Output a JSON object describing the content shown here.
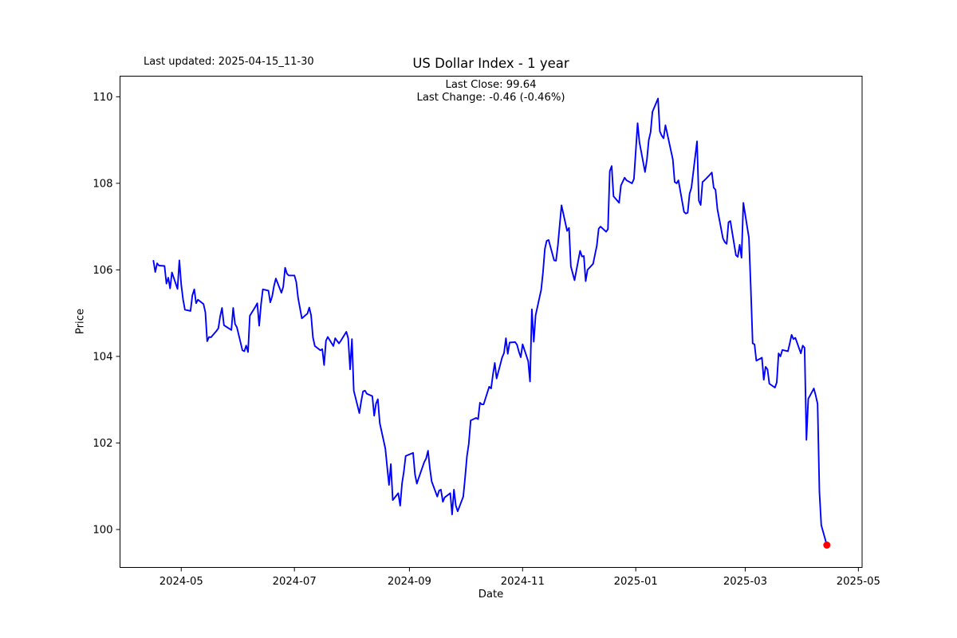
{
  "header": {
    "last_updated": "Last updated: 2025-04-15_11-30"
  },
  "chart_data": {
    "type": "line",
    "title": "US Dollar Index - 1 year",
    "annotation_line1": "Last Close: 99.64",
    "annotation_line2": "Last Change: -0.46 (-0.46%)",
    "xlabel": "Date",
    "ylabel": "Price",
    "last_close": 99.64,
    "last_change": -0.46,
    "last_change_pct": "-0.46%",
    "line_color": "#0000ff",
    "marker_color": "#ff0000",
    "axis_color": "#000000",
    "grid": false,
    "legend_position": "none",
    "xlim": [
      "2024-03-29",
      "2025-05-03"
    ],
    "ylim": [
      99.124,
      110.476
    ],
    "x_ticks": [
      {
        "pos": "2024-05-01",
        "label": "2024-05"
      },
      {
        "pos": "2024-07-01",
        "label": "2024-07"
      },
      {
        "pos": "2024-09-01",
        "label": "2024-09"
      },
      {
        "pos": "2024-11-01",
        "label": "2024-11"
      },
      {
        "pos": "2025-01-01",
        "label": "2025-01"
      },
      {
        "pos": "2025-03-01",
        "label": "2025-03"
      },
      {
        "pos": "2025-05-01",
        "label": "2025-05"
      }
    ],
    "y_ticks": [
      {
        "pos": 100,
        "label": "100"
      },
      {
        "pos": 102,
        "label": "102"
      },
      {
        "pos": 104,
        "label": "104"
      },
      {
        "pos": 106,
        "label": "106"
      },
      {
        "pos": 108,
        "label": "108"
      },
      {
        "pos": 110,
        "label": "110"
      }
    ],
    "series": [
      {
        "name": "US Dollar Index",
        "points": [
          [
            "2024-04-16",
            106.21
          ],
          [
            "2024-04-17",
            105.95
          ],
          [
            "2024-04-18",
            106.15
          ],
          [
            "2024-04-19",
            106.1
          ],
          [
            "2024-04-22",
            106.09
          ],
          [
            "2024-04-23",
            105.68
          ],
          [
            "2024-04-24",
            105.82
          ],
          [
            "2024-04-25",
            105.57
          ],
          [
            "2024-04-26",
            105.94
          ],
          [
            "2024-04-29",
            105.56
          ],
          [
            "2024-04-30",
            106.22
          ],
          [
            "2024-05-01",
            105.65
          ],
          [
            "2024-05-02",
            105.31
          ],
          [
            "2024-05-03",
            105.08
          ],
          [
            "2024-05-06",
            105.05
          ],
          [
            "2024-05-07",
            105.41
          ],
          [
            "2024-05-08",
            105.55
          ],
          [
            "2024-05-09",
            105.23
          ],
          [
            "2024-05-10",
            105.31
          ],
          [
            "2024-05-13",
            105.21
          ],
          [
            "2024-05-14",
            105.02
          ],
          [
            "2024-05-15",
            104.35
          ],
          [
            "2024-05-16",
            104.45
          ],
          [
            "2024-05-17",
            104.44
          ],
          [
            "2024-05-20",
            104.59
          ],
          [
            "2024-05-21",
            104.65
          ],
          [
            "2024-05-22",
            104.93
          ],
          [
            "2024-05-23",
            105.12
          ],
          [
            "2024-05-24",
            104.72
          ],
          [
            "2024-05-28",
            104.61
          ],
          [
            "2024-05-29",
            105.12
          ],
          [
            "2024-05-30",
            104.75
          ],
          [
            "2024-05-31",
            104.67
          ],
          [
            "2024-06-03",
            104.14
          ],
          [
            "2024-06-04",
            104.12
          ],
          [
            "2024-06-05",
            104.25
          ],
          [
            "2024-06-06",
            104.1
          ],
          [
            "2024-06-07",
            104.94
          ],
          [
            "2024-06-10",
            105.15
          ],
          [
            "2024-06-11",
            105.23
          ],
          [
            "2024-06-12",
            104.71
          ],
          [
            "2024-06-13",
            105.2
          ],
          [
            "2024-06-14",
            105.55
          ],
          [
            "2024-06-17",
            105.52
          ],
          [
            "2024-06-18",
            105.25
          ],
          [
            "2024-06-19",
            105.39
          ],
          [
            "2024-06-20",
            105.63
          ],
          [
            "2024-06-21",
            105.8
          ],
          [
            "2024-06-24",
            105.47
          ],
          [
            "2024-06-25",
            105.61
          ],
          [
            "2024-06-26",
            106.05
          ],
          [
            "2024-06-27",
            105.91
          ],
          [
            "2024-06-28",
            105.87
          ],
          [
            "2024-07-01",
            105.87
          ],
          [
            "2024-07-02",
            105.72
          ],
          [
            "2024-07-03",
            105.35
          ],
          [
            "2024-07-05",
            104.88
          ],
          [
            "2024-07-08",
            104.99
          ],
          [
            "2024-07-09",
            105.13
          ],
          [
            "2024-07-10",
            104.95
          ],
          [
            "2024-07-11",
            104.44
          ],
          [
            "2024-07-12",
            104.24
          ],
          [
            "2024-07-15",
            104.14
          ],
          [
            "2024-07-16",
            104.17
          ],
          [
            "2024-07-17",
            103.8
          ],
          [
            "2024-07-18",
            104.36
          ],
          [
            "2024-07-19",
            104.45
          ],
          [
            "2024-07-22",
            104.24
          ],
          [
            "2024-07-23",
            104.42
          ],
          [
            "2024-07-24",
            104.36
          ],
          [
            "2024-07-25",
            104.3
          ],
          [
            "2024-07-26",
            104.36
          ],
          [
            "2024-07-29",
            104.57
          ],
          [
            "2024-07-30",
            104.42
          ],
          [
            "2024-07-31",
            103.7
          ],
          [
            "2024-08-01",
            104.4
          ],
          [
            "2024-08-02",
            103.21
          ],
          [
            "2024-08-05",
            102.69
          ],
          [
            "2024-08-06",
            102.96
          ],
          [
            "2024-08-07",
            103.19
          ],
          [
            "2024-08-08",
            103.21
          ],
          [
            "2024-08-09",
            103.14
          ],
          [
            "2024-08-12",
            103.08
          ],
          [
            "2024-08-13",
            102.63
          ],
          [
            "2024-08-14",
            102.91
          ],
          [
            "2024-08-15",
            103.01
          ],
          [
            "2024-08-16",
            102.46
          ],
          [
            "2024-08-19",
            101.87
          ],
          [
            "2024-08-20",
            101.44
          ],
          [
            "2024-08-21",
            101.03
          ],
          [
            "2024-08-22",
            101.51
          ],
          [
            "2024-08-23",
            100.68
          ],
          [
            "2024-08-26",
            100.84
          ],
          [
            "2024-08-27",
            100.55
          ],
          [
            "2024-08-28",
            101.06
          ],
          [
            "2024-08-29",
            101.34
          ],
          [
            "2024-08-30",
            101.7
          ],
          [
            "2024-09-03",
            101.77
          ],
          [
            "2024-09-04",
            101.27
          ],
          [
            "2024-09-05",
            101.06
          ],
          [
            "2024-09-06",
            101.19
          ],
          [
            "2024-09-09",
            101.56
          ],
          [
            "2024-09-10",
            101.64
          ],
          [
            "2024-09-11",
            101.82
          ],
          [
            "2024-09-12",
            101.42
          ],
          [
            "2024-09-13",
            101.11
          ],
          [
            "2024-09-16",
            100.76
          ],
          [
            "2024-09-17",
            100.9
          ],
          [
            "2024-09-18",
            100.92
          ],
          [
            "2024-09-19",
            100.64
          ],
          [
            "2024-09-20",
            100.74
          ],
          [
            "2024-09-23",
            100.84
          ],
          [
            "2024-09-24",
            100.35
          ],
          [
            "2024-09-25",
            100.92
          ],
          [
            "2024-09-26",
            100.55
          ],
          [
            "2024-09-27",
            100.42
          ],
          [
            "2024-09-30",
            100.76
          ],
          [
            "2024-10-01",
            101.2
          ],
          [
            "2024-10-02",
            101.69
          ],
          [
            "2024-10-03",
            101.98
          ],
          [
            "2024-10-04",
            102.52
          ],
          [
            "2024-10-07",
            102.58
          ],
          [
            "2024-10-08",
            102.55
          ],
          [
            "2024-10-09",
            102.93
          ],
          [
            "2024-10-10",
            102.89
          ],
          [
            "2024-10-11",
            102.89
          ],
          [
            "2024-10-14",
            103.3
          ],
          [
            "2024-10-15",
            103.26
          ],
          [
            "2024-10-16",
            103.58
          ],
          [
            "2024-10-17",
            103.85
          ],
          [
            "2024-10-18",
            103.49
          ],
          [
            "2024-10-21",
            103.98
          ],
          [
            "2024-10-22",
            104.08
          ],
          [
            "2024-10-23",
            104.42
          ],
          [
            "2024-10-24",
            104.06
          ],
          [
            "2024-10-25",
            104.32
          ],
          [
            "2024-10-28",
            104.33
          ],
          [
            "2024-10-29",
            104.27
          ],
          [
            "2024-10-30",
            104.11
          ],
          [
            "2024-10-31",
            103.98
          ],
          [
            "2024-11-01",
            104.28
          ],
          [
            "2024-11-04",
            103.89
          ],
          [
            "2024-11-05",
            103.42
          ],
          [
            "2024-11-06",
            105.09
          ],
          [
            "2024-11-07",
            104.34
          ],
          [
            "2024-11-08",
            104.95
          ],
          [
            "2024-11-11",
            105.54
          ],
          [
            "2024-11-12",
            105.95
          ],
          [
            "2024-11-13",
            106.48
          ],
          [
            "2024-11-14",
            106.67
          ],
          [
            "2024-11-15",
            106.69
          ],
          [
            "2024-11-18",
            106.22
          ],
          [
            "2024-11-19",
            106.21
          ],
          [
            "2024-11-20",
            106.56
          ],
          [
            "2024-11-21",
            107.03
          ],
          [
            "2024-11-22",
            107.49
          ],
          [
            "2024-11-25",
            106.9
          ],
          [
            "2024-11-26",
            106.97
          ],
          [
            "2024-11-27",
            106.08
          ],
          [
            "2024-11-29",
            105.76
          ],
          [
            "2024-12-02",
            106.44
          ],
          [
            "2024-12-03",
            106.31
          ],
          [
            "2024-12-04",
            106.32
          ],
          [
            "2024-12-05",
            105.74
          ],
          [
            "2024-12-06",
            106.0
          ],
          [
            "2024-12-09",
            106.14
          ],
          [
            "2024-12-10",
            106.35
          ],
          [
            "2024-12-11",
            106.55
          ],
          [
            "2024-12-12",
            106.95
          ],
          [
            "2024-12-13",
            107.0
          ],
          [
            "2024-12-16",
            106.88
          ],
          [
            "2024-12-17",
            106.94
          ],
          [
            "2024-12-18",
            108.28
          ],
          [
            "2024-12-19",
            108.4
          ],
          [
            "2024-12-20",
            107.7
          ],
          [
            "2024-12-23",
            107.55
          ],
          [
            "2024-12-24",
            107.95
          ],
          [
            "2024-12-26",
            108.13
          ],
          [
            "2024-12-27",
            108.07
          ],
          [
            "2024-12-30",
            108.0
          ],
          [
            "2024-12-31",
            108.1
          ],
          [
            "2025-01-02",
            109.39
          ],
          [
            "2025-01-03",
            108.95
          ],
          [
            "2025-01-06",
            108.26
          ],
          [
            "2025-01-07",
            108.55
          ],
          [
            "2025-01-08",
            109.0
          ],
          [
            "2025-01-09",
            109.18
          ],
          [
            "2025-01-10",
            109.65
          ],
          [
            "2025-01-13",
            109.96
          ],
          [
            "2025-01-14",
            109.2
          ],
          [
            "2025-01-15",
            109.1
          ],
          [
            "2025-01-16",
            109.04
          ],
          [
            "2025-01-17",
            109.34
          ],
          [
            "2025-01-21",
            108.55
          ],
          [
            "2025-01-22",
            108.03
          ],
          [
            "2025-01-23",
            108.0
          ],
          [
            "2025-01-24",
            108.07
          ],
          [
            "2025-01-27",
            107.34
          ],
          [
            "2025-01-28",
            107.3
          ],
          [
            "2025-01-29",
            107.32
          ],
          [
            "2025-01-30",
            107.76
          ],
          [
            "2025-01-31",
            107.9
          ],
          [
            "2025-02-03",
            108.97
          ],
          [
            "2025-02-04",
            107.6
          ],
          [
            "2025-02-05",
            107.5
          ],
          [
            "2025-02-06",
            108.03
          ],
          [
            "2025-02-07",
            108.07
          ],
          [
            "2025-02-10",
            108.2
          ],
          [
            "2025-02-11",
            108.25
          ],
          [
            "2025-02-12",
            107.9
          ],
          [
            "2025-02-13",
            107.85
          ],
          [
            "2025-02-14",
            107.4
          ],
          [
            "2025-02-17",
            106.73
          ],
          [
            "2025-02-18",
            106.64
          ],
          [
            "2025-02-19",
            106.6
          ],
          [
            "2025-02-20",
            107.1
          ],
          [
            "2025-02-21",
            107.13
          ],
          [
            "2025-02-24",
            106.34
          ],
          [
            "2025-02-25",
            106.3
          ],
          [
            "2025-02-26",
            106.58
          ],
          [
            "2025-02-27",
            106.28
          ],
          [
            "2025-02-28",
            107.55
          ],
          [
            "2025-03-03",
            106.74
          ],
          [
            "2025-03-04",
            105.6
          ],
          [
            "2025-03-05",
            104.3
          ],
          [
            "2025-03-06",
            104.28
          ],
          [
            "2025-03-07",
            103.9
          ],
          [
            "2025-03-10",
            103.97
          ],
          [
            "2025-03-11",
            103.46
          ],
          [
            "2025-03-12",
            103.76
          ],
          [
            "2025-03-13",
            103.7
          ],
          [
            "2025-03-14",
            103.37
          ],
          [
            "2025-03-17",
            103.28
          ],
          [
            "2025-03-18",
            103.4
          ],
          [
            "2025-03-19",
            104.07
          ],
          [
            "2025-03-20",
            104.0
          ],
          [
            "2025-03-21",
            104.15
          ],
          [
            "2025-03-24",
            104.12
          ],
          [
            "2025-03-25",
            104.3
          ],
          [
            "2025-03-26",
            104.5
          ],
          [
            "2025-03-27",
            104.4
          ],
          [
            "2025-03-28",
            104.43
          ],
          [
            "2025-03-31",
            104.07
          ],
          [
            "2025-04-01",
            104.25
          ],
          [
            "2025-04-02",
            104.2
          ],
          [
            "2025-04-03",
            102.07
          ],
          [
            "2025-04-04",
            103.02
          ],
          [
            "2025-04-07",
            103.26
          ],
          [
            "2025-04-08",
            103.1
          ],
          [
            "2025-04-09",
            102.9
          ],
          [
            "2025-04-10",
            100.87
          ],
          [
            "2025-04-11",
            100.1
          ],
          [
            "2025-04-14",
            99.64
          ]
        ]
      }
    ]
  }
}
